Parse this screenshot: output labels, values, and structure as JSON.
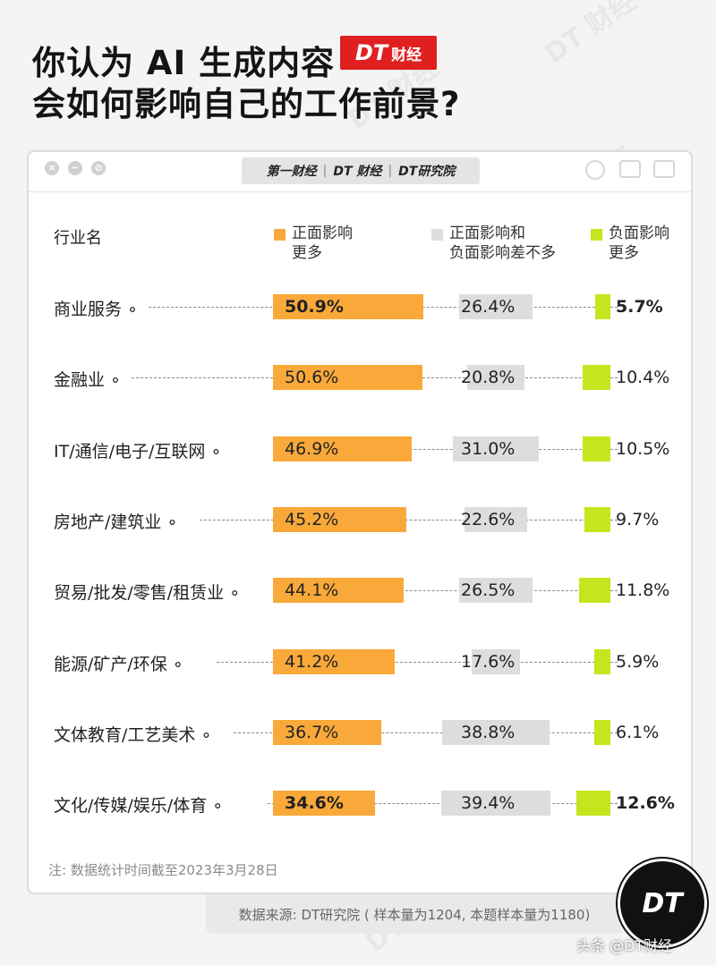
{
  "header": {
    "title_line1": "你认为 AI 生成内容",
    "title_line2": "会如何影响自己的工作前景?",
    "badge_dt": "DT",
    "badge_cj": "财经"
  },
  "window": {
    "brand_1": "第一财经",
    "brand_2": "DT 财经",
    "brand_3": "DT研究院",
    "close_glyph": "×",
    "minimize_glyph": "−",
    "other_glyph": "⊘"
  },
  "watermark": "DT 财经",
  "chart_data": {
    "type": "bar",
    "column_header": "行业名",
    "series": [
      {
        "name": "正面影响\n更多",
        "name_line1": "正面影响",
        "name_line2": "更多",
        "color": "#f9a93a",
        "values": [
          50.9,
          50.6,
          46.9,
          45.2,
          44.1,
          41.2,
          36.7,
          34.6
        ]
      },
      {
        "name": "正面影响和\n负面影响差不多",
        "name_line1": "正面影响和",
        "name_line2": "负面影响差不多",
        "color": "#dddddd",
        "values": [
          26.4,
          20.8,
          31.0,
          22.6,
          26.5,
          17.6,
          38.8,
          39.4
        ]
      },
      {
        "name": "负面影响\n更多",
        "name_line1": "负面影响",
        "name_line2": "更多",
        "color": "#c5e61f",
        "values": [
          5.7,
          10.4,
          10.5,
          9.7,
          11.8,
          5.9,
          6.1,
          12.6
        ]
      }
    ],
    "categories": [
      "商业服务",
      "金融业",
      "IT/通信/电子/互联网",
      "房地产/建筑业",
      "贸易/批发/零售/租赁业",
      "能源/矿产/环保",
      "文体教育/工艺美术",
      "文化/传媒/娱乐/体育"
    ],
    "labels": [
      [
        "50.9%",
        "26.4%",
        "5.7%"
      ],
      [
        "50.6%",
        "20.8%",
        "10.4%"
      ],
      [
        "46.9%",
        "31.0%",
        "10.5%"
      ],
      [
        "45.2%",
        "22.6%",
        "9.7%"
      ],
      [
        "44.1%",
        "26.5%",
        "11.8%"
      ],
      [
        "41.2%",
        "17.6%",
        "5.9%"
      ],
      [
        "36.7%",
        "38.8%",
        "6.1%"
      ],
      [
        "34.6%",
        "39.4%",
        "12.6%"
      ]
    ],
    "bold_labels": [
      [
        true,
        false,
        true
      ],
      [
        false,
        false,
        false
      ],
      [
        false,
        false,
        false
      ],
      [
        false,
        false,
        false
      ],
      [
        false,
        false,
        false
      ],
      [
        false,
        false,
        false
      ],
      [
        false,
        false,
        false
      ],
      [
        true,
        false,
        true
      ]
    ]
  },
  "note": "注: 数据统计时间截至2023年3月28日",
  "source": "数据来源: DT研究院 ( 样本量为1204, 本题样本量为1180)",
  "logo_text": "DT",
  "credit": "头条 @DT财经"
}
